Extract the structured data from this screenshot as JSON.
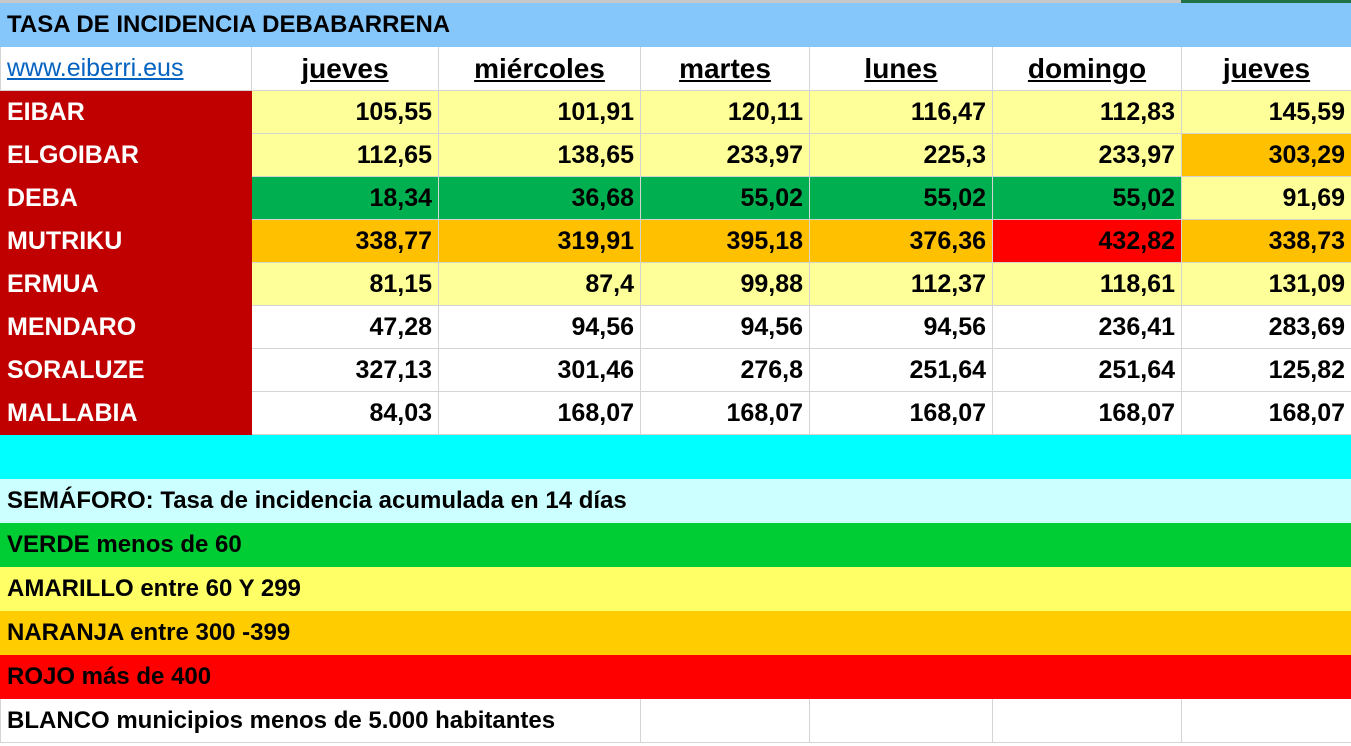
{
  "title": "TASA DE INCIDENCIA DEBABARRENA",
  "link": "www.eiberri.eus",
  "days": [
    "jueves",
    "miércoles",
    "martes",
    "lunes",
    "domingo",
    "jueves"
  ],
  "colors": {
    "header": "#85c6fb",
    "municipality": "#c00000",
    "yellow": "#ffff99",
    "orange": "#ffc000",
    "green": "#00b050",
    "red": "#ff0000",
    "white": "#ffffff"
  },
  "rows": [
    {
      "name": "EIBAR",
      "values": [
        "105,55",
        "101,91",
        "120,11",
        "116,47",
        "112,83",
        "145,59"
      ],
      "fills": [
        "y",
        "y",
        "y",
        "y",
        "y",
        "y"
      ]
    },
    {
      "name": "ELGOIBAR",
      "values": [
        "112,65",
        "138,65",
        "233,97",
        "225,3",
        "233,97",
        "303,29"
      ],
      "fills": [
        "y",
        "y",
        "y",
        "y",
        "y",
        "o"
      ]
    },
    {
      "name": "DEBA",
      "values": [
        "18,34",
        "36,68",
        "55,02",
        "55,02",
        "55,02",
        "91,69"
      ],
      "fills": [
        "g",
        "g",
        "g",
        "g",
        "g",
        "y"
      ]
    },
    {
      "name": "MUTRIKU",
      "values": [
        "338,77",
        "319,91",
        "395,18",
        "376,36",
        "432,82",
        "338,73"
      ],
      "fills": [
        "o",
        "o",
        "o",
        "o",
        "r",
        "o"
      ]
    },
    {
      "name": "ERMUA",
      "values": [
        "81,15",
        "87,4",
        "99,88",
        "112,37",
        "118,61",
        "131,09"
      ],
      "fills": [
        "y",
        "y",
        "y",
        "y",
        "y",
        "y"
      ]
    },
    {
      "name": "MENDARO",
      "values": [
        "47,28",
        "94,56",
        "94,56",
        "94,56",
        "236,41",
        "283,69"
      ],
      "fills": [
        "w",
        "w",
        "w",
        "w",
        "w",
        "w"
      ]
    },
    {
      "name": "SORALUZE",
      "values": [
        "327,13",
        "301,46",
        "276,8",
        "251,64",
        "251,64",
        "125,82"
      ],
      "fills": [
        "w",
        "w",
        "w",
        "w",
        "w",
        "w"
      ]
    },
    {
      "name": "MALLABIA",
      "values": [
        "84,03",
        "168,07",
        "168,07",
        "168,07",
        "168,07",
        "168,07"
      ],
      "fills": [
        "w",
        "w",
        "w",
        "w",
        "w",
        "w"
      ]
    }
  ],
  "legend": {
    "heading": "SEMÁFORO:  Tasa de incidencia acumulada en 14 días",
    "verde": "VERDE menos de 60",
    "amarillo": "AMARILLO entre 60 Y 299",
    "naranja": "NARANJA entre 300 -399",
    "rojo": "ROJO más de 400",
    "blanco": "BLANCO municipios menos de 5.000 habitantes"
  }
}
